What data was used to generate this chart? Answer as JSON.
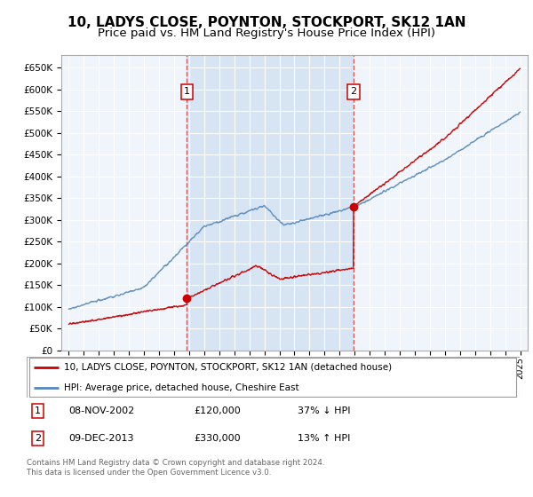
{
  "title": "10, LADYS CLOSE, POYNTON, STOCKPORT, SK12 1AN",
  "subtitle": "Price paid vs. HM Land Registry's House Price Index (HPI)",
  "title_fontsize": 11,
  "subtitle_fontsize": 9.5,
  "background_color": "#ffffff",
  "plot_bg_color": "#dce8f5",
  "plot_bg_color2": "#e8f0f8",
  "grid_color": "#ffffff",
  "line_color_red": "#cc0000",
  "line_color_blue": "#5588bb",
  "vline_color": "#cc4444",
  "annotation_box_color": "#cc0000",
  "ylim_min": 0,
  "ylim_max": 680000,
  "xlim_min": 1994.5,
  "xlim_max": 2025.5,
  "marker1_x": 2002.85,
  "marker1_y": 120000,
  "marker2_x": 2013.92,
  "marker2_y": 330000,
  "legend_entry1": "10, LADYS CLOSE, POYNTON, STOCKPORT, SK12 1AN (detached house)",
  "legend_entry2": "HPI: Average price, detached house, Cheshire East",
  "table_row1_num": "1",
  "table_row1_date": "08-NOV-2002",
  "table_row1_price": "£120,000",
  "table_row1_hpi": "37% ↓ HPI",
  "table_row2_num": "2",
  "table_row2_date": "09-DEC-2013",
  "table_row2_price": "£330,000",
  "table_row2_hpi": "13% ↑ HPI",
  "footer": "Contains HM Land Registry data © Crown copyright and database right 2024.\nThis data is licensed under the Open Government Licence v3.0.",
  "yticks": [
    0,
    50000,
    100000,
    150000,
    200000,
    250000,
    300000,
    350000,
    400000,
    450000,
    500000,
    550000,
    600000,
    650000
  ],
  "ytick_labels": [
    "£0",
    "£50K",
    "£100K",
    "£150K",
    "£200K",
    "£250K",
    "£300K",
    "£350K",
    "£400K",
    "£450K",
    "£500K",
    "£550K",
    "£600K",
    "£650K"
  ],
  "xticks": [
    1995,
    1996,
    1997,
    1998,
    1999,
    2000,
    2001,
    2002,
    2003,
    2004,
    2005,
    2006,
    2007,
    2008,
    2009,
    2010,
    2011,
    2012,
    2013,
    2014,
    2015,
    2016,
    2017,
    2018,
    2019,
    2020,
    2021,
    2022,
    2023,
    2024,
    2025
  ]
}
